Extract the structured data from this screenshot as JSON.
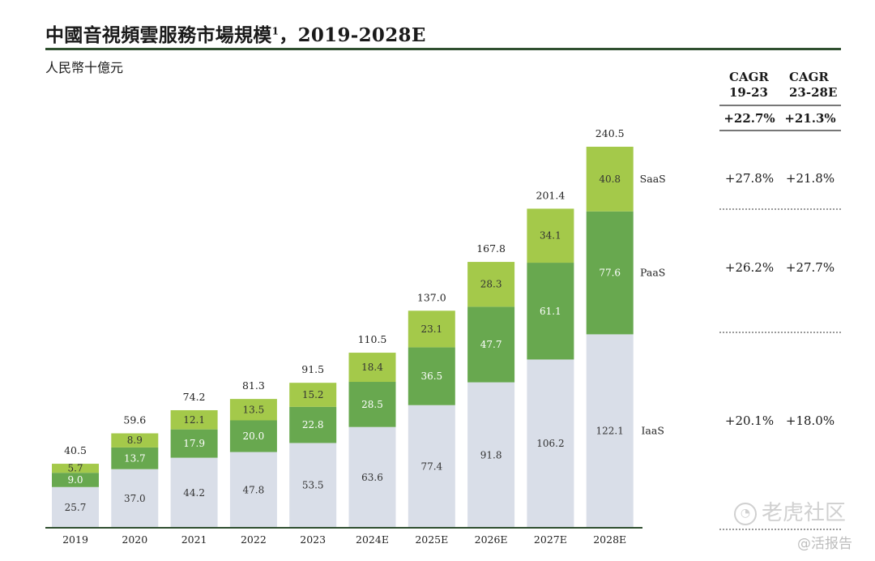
{
  "header": {
    "title_main": "中國音視頻雲服務市場規模",
    "title_sup": "1",
    "title_rest": "，2019-2028E",
    "unit": "人民幣十億元"
  },
  "chart_data": {
    "type": "bar",
    "stacked": true,
    "title": "中國音視頻雲服務市場規模1，2019-2028E",
    "ylabel": "人民幣十億元",
    "ylim": [
      0,
      240.5
    ],
    "categories": [
      "2019",
      "2020",
      "2021",
      "2022",
      "2023",
      "2024E",
      "2025E",
      "2026E",
      "2027E",
      "2028E"
    ],
    "series": [
      {
        "name": "IaaS",
        "color": "#d9dee8",
        "values": [
          25.7,
          37.0,
          44.2,
          47.8,
          53.5,
          63.6,
          77.4,
          91.8,
          106.2,
          122.1
        ]
      },
      {
        "name": "PaaS",
        "color": "#68a84f",
        "values": [
          9.0,
          13.7,
          17.9,
          20.0,
          22.8,
          28.5,
          36.5,
          47.7,
          61.1,
          77.6
        ]
      },
      {
        "name": "SaaS",
        "color": "#a4c94a",
        "values": [
          5.7,
          8.9,
          12.1,
          13.5,
          15.2,
          18.4,
          23.1,
          28.3,
          34.1,
          40.8
        ]
      }
    ],
    "totals": [
      "40.5",
      "59.6",
      "74.2",
      "81.3",
      "91.5",
      "110.5",
      "137.0",
      "167.8",
      "201.4",
      "240.5"
    ],
    "value_labels": [
      [
        "25.7",
        "37.0",
        "44.2",
        "47.8",
        "53.5",
        "63.6",
        "77.4",
        "91.8",
        "106.2",
        "122.1"
      ],
      [
        "9.0",
        "13.7",
        "17.9",
        "20.0",
        "22.8",
        "28.5",
        "36.5",
        "47.7",
        "61.1",
        "77.6"
      ],
      [
        "5.7",
        "8.9",
        "12.1",
        "13.5",
        "15.2",
        "18.4",
        "23.1",
        "28.3",
        "34.1",
        "40.8"
      ]
    ],
    "legend_position": "right"
  },
  "cagr_table": {
    "col1_header_line1": "CAGR",
    "col1_header_line2": "19-23",
    "col2_header_line1": "CAGR",
    "col2_header_line2": "23-28E",
    "total": {
      "c1": "+22.7%",
      "c2": "+21.3%"
    },
    "saas": {
      "c1": "+27.8%",
      "c2": "+21.8%"
    },
    "paas": {
      "c1": "+26.2%",
      "c2": "+27.7%"
    },
    "iaas": {
      "c1": "+20.1%",
      "c2": "+18.0%"
    }
  },
  "watermark": {
    "brand": "老虎社区",
    "handle": "@活报告"
  },
  "colors": {
    "iaas": "#d9dee8",
    "paas": "#68a84f",
    "saas": "#a4c94a",
    "rule": "#2f4f2f"
  }
}
